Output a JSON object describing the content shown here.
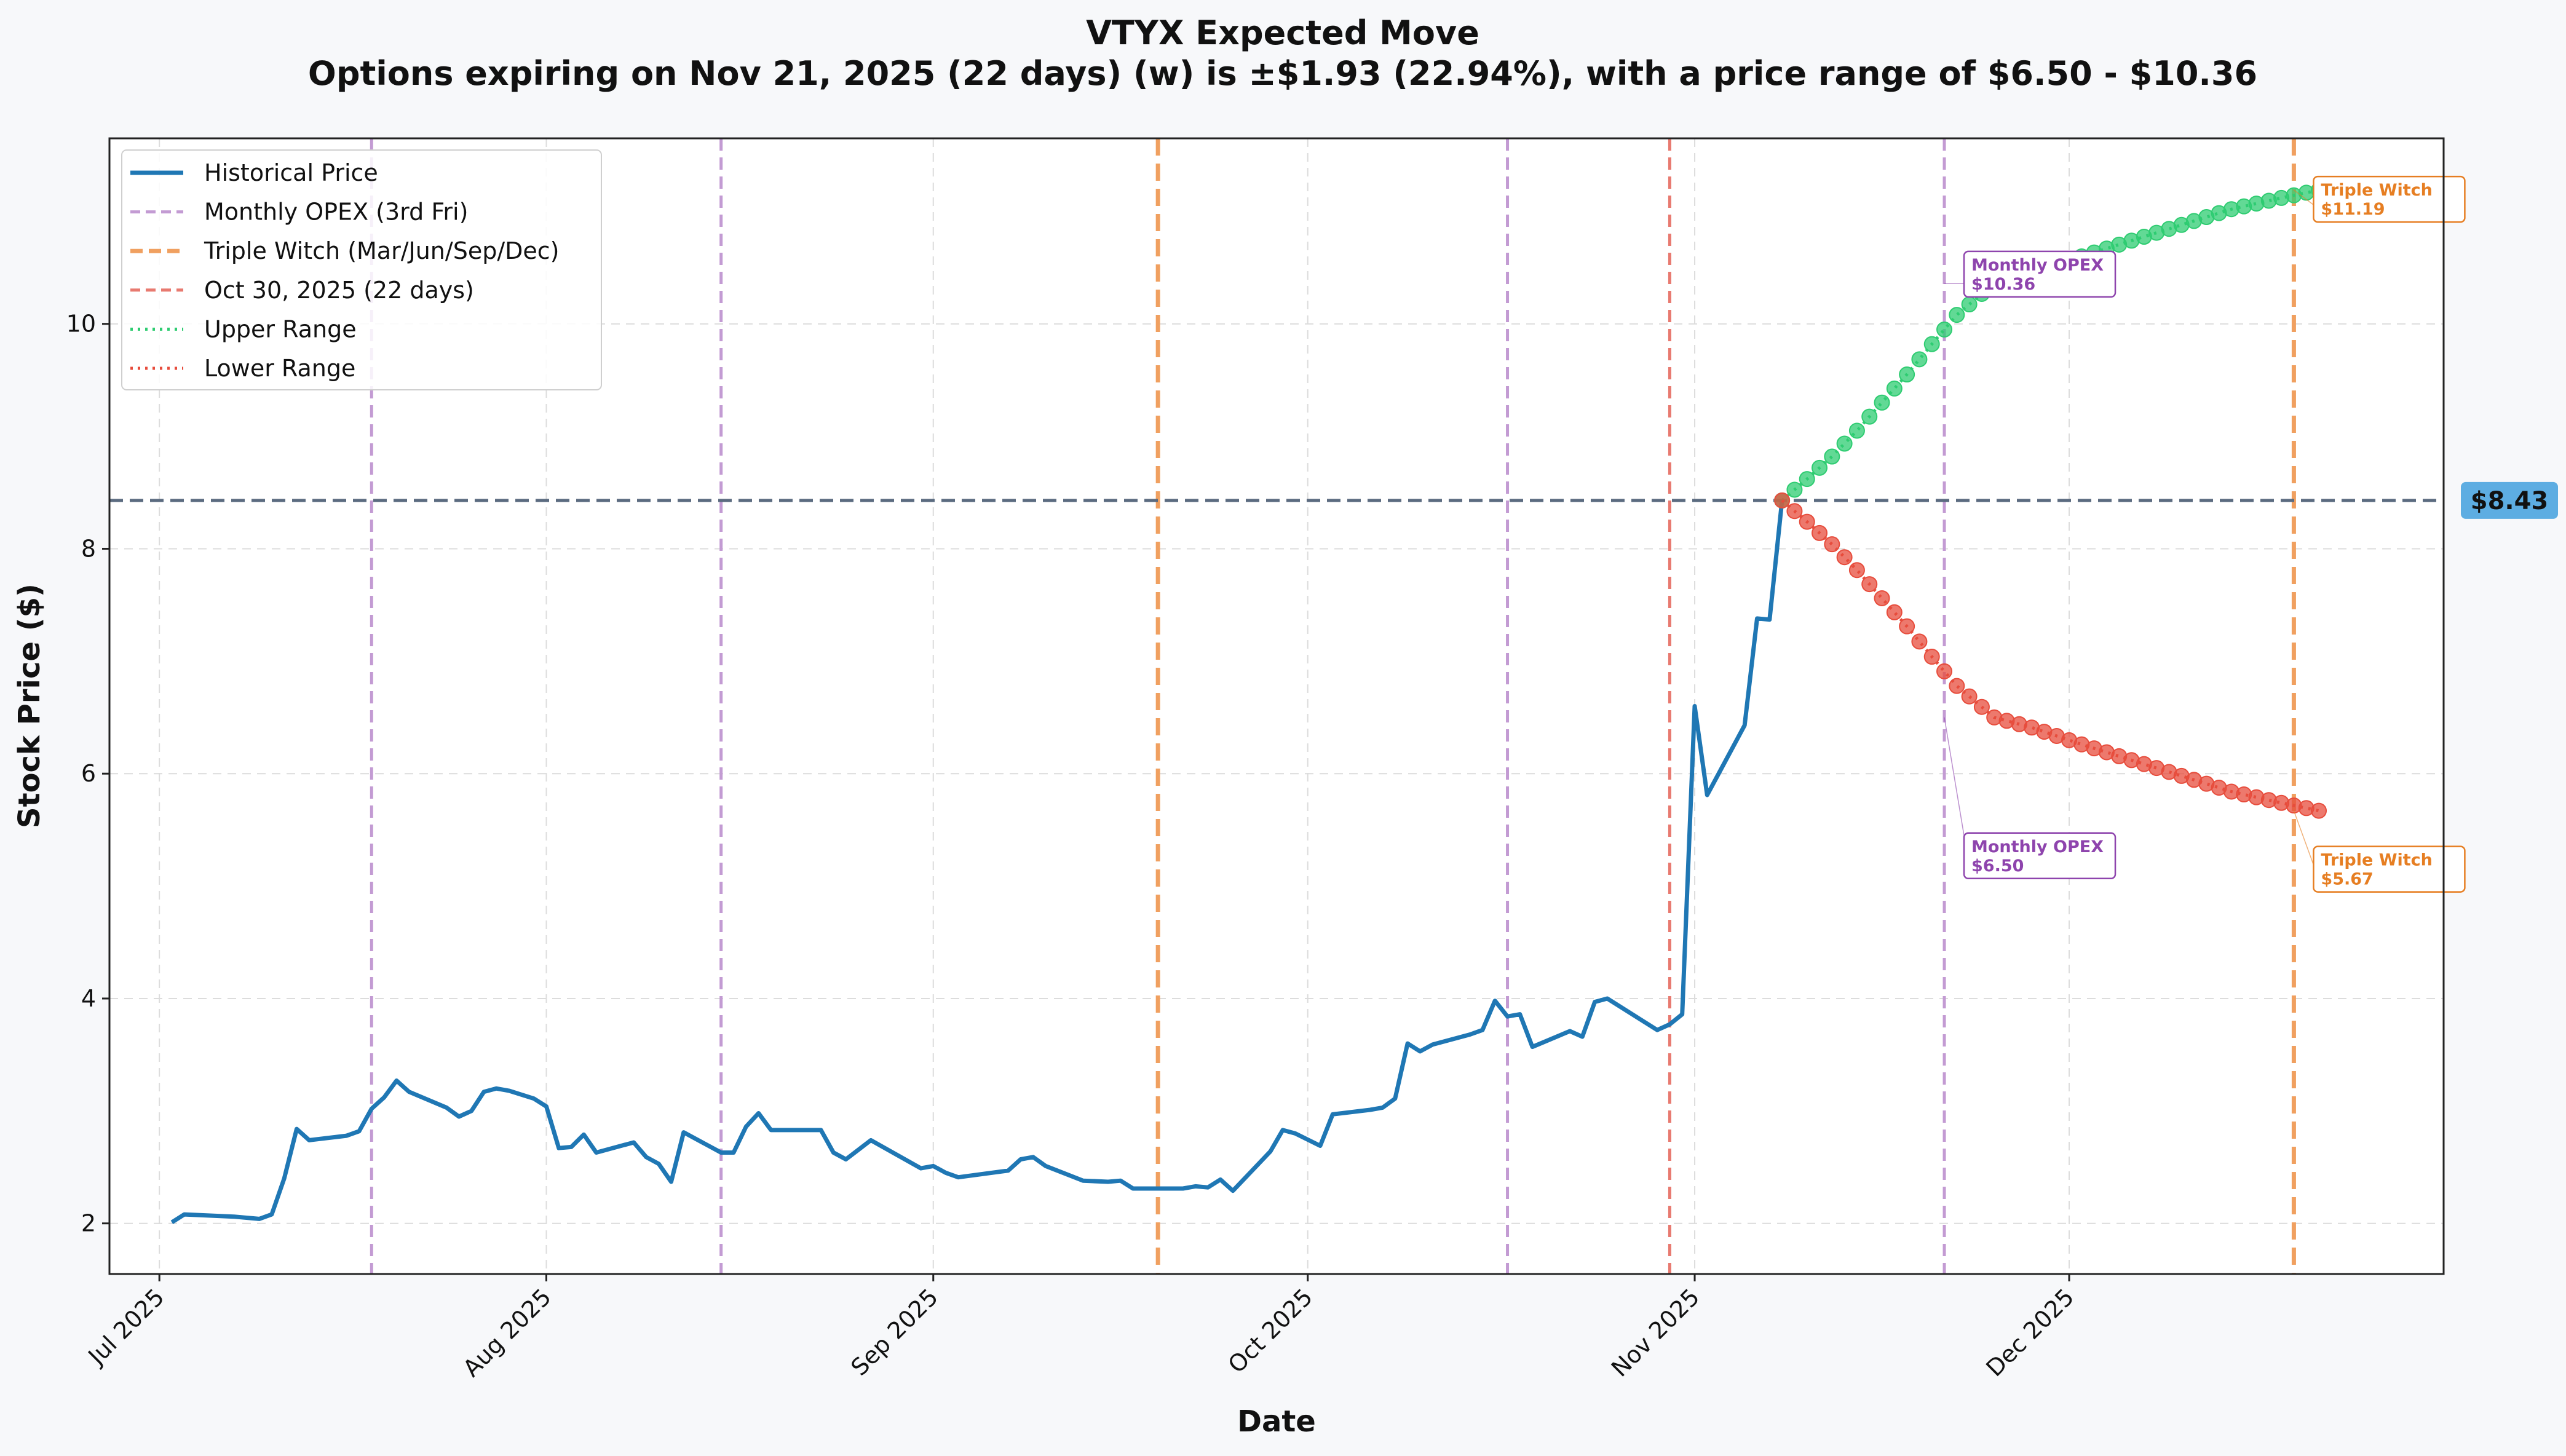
{
  "chart_data": {
    "type": "line",
    "title": "VTYX Expected Move",
    "subtitle": "Options expiring on Nov 21, 2025 (22 days) (w) is ±$1.93 (22.94%), with a price range of $6.50 - $10.36",
    "xlabel": "Date",
    "ylabel": "Stock Price ($)",
    "xlim": [
      "2025-06-27",
      "2025-12-31"
    ],
    "ylim": [
      1.55,
      11.65
    ],
    "grid": true,
    "legend_placement": "upper-left",
    "x_ticks": [
      {
        "date": "2025-07-01",
        "label": "Jul 2025"
      },
      {
        "date": "2025-08-01",
        "label": "Aug 2025"
      },
      {
        "date": "2025-09-01",
        "label": "Sep 2025"
      },
      {
        "date": "2025-10-01",
        "label": "Oct 2025"
      },
      {
        "date": "2025-11-01",
        "label": "Nov 2025"
      },
      {
        "date": "2025-12-01",
        "label": "Dec 2025"
      }
    ],
    "y_ticks": [
      {
        "value": 2,
        "label": "2"
      },
      {
        "value": 4,
        "label": "4"
      },
      {
        "value": 6,
        "label": "6"
      },
      {
        "value": 8,
        "label": "8"
      },
      {
        "value": 10,
        "label": "10"
      }
    ],
    "series": [
      {
        "name": "Historical Price",
        "color": "#1f77b4",
        "points": [
          [
            "2025-07-02",
            2.01
          ],
          [
            "2025-07-03",
            2.08
          ],
          [
            "2025-07-07",
            2.06
          ],
          [
            "2025-07-09",
            2.04
          ],
          [
            "2025-07-10",
            2.08
          ],
          [
            "2025-07-11",
            2.4
          ],
          [
            "2025-07-12",
            2.84
          ],
          [
            "2025-07-13",
            2.74
          ],
          [
            "2025-07-16",
            2.78
          ],
          [
            "2025-07-17",
            2.82
          ],
          [
            "2025-07-18",
            3.02
          ],
          [
            "2025-07-19",
            3.12
          ],
          [
            "2025-07-20",
            3.27
          ],
          [
            "2025-07-21",
            3.17
          ],
          [
            "2025-07-24",
            3.03
          ],
          [
            "2025-07-25",
            2.95
          ],
          [
            "2025-07-26",
            3.0
          ],
          [
            "2025-07-27",
            3.17
          ],
          [
            "2025-07-28",
            3.2
          ],
          [
            "2025-07-29",
            3.18
          ],
          [
            "2025-07-31",
            3.11
          ],
          [
            "2025-08-01",
            3.04
          ],
          [
            "2025-08-02",
            2.67
          ],
          [
            "2025-08-03",
            2.68
          ],
          [
            "2025-08-04",
            2.79
          ],
          [
            "2025-08-05",
            2.63
          ],
          [
            "2025-08-08",
            2.72
          ],
          [
            "2025-08-09",
            2.59
          ],
          [
            "2025-08-10",
            2.53
          ],
          [
            "2025-08-11",
            2.37
          ],
          [
            "2025-08-12",
            2.81
          ],
          [
            "2025-08-15",
            2.63
          ],
          [
            "2025-08-16",
            2.63
          ],
          [
            "2025-08-17",
            2.86
          ],
          [
            "2025-08-18",
            2.98
          ],
          [
            "2025-08-19",
            2.83
          ],
          [
            "2025-08-23",
            2.83
          ],
          [
            "2025-08-24",
            2.63
          ],
          [
            "2025-08-25",
            2.57
          ],
          [
            "2025-08-27",
            2.74
          ],
          [
            "2025-08-31",
            2.49
          ],
          [
            "2025-09-01",
            2.51
          ],
          [
            "2025-09-02",
            2.45
          ],
          [
            "2025-09-03",
            2.41
          ],
          [
            "2025-09-07",
            2.47
          ],
          [
            "2025-09-08",
            2.57
          ],
          [
            "2025-09-09",
            2.59
          ],
          [
            "2025-09-10",
            2.51
          ],
          [
            "2025-09-13",
            2.38
          ],
          [
            "2025-09-15",
            2.37
          ],
          [
            "2025-09-16",
            2.38
          ],
          [
            "2025-09-17",
            2.31
          ],
          [
            "2025-09-20",
            2.31
          ],
          [
            "2025-09-21",
            2.31
          ],
          [
            "2025-09-22",
            2.33
          ],
          [
            "2025-09-23",
            2.32
          ],
          [
            "2025-09-24",
            2.39
          ],
          [
            "2025-09-25",
            2.29
          ],
          [
            "2025-09-28",
            2.64
          ],
          [
            "2025-09-29",
            2.83
          ],
          [
            "2025-09-30",
            2.8
          ],
          [
            "2025-10-02",
            2.69
          ],
          [
            "2025-10-03",
            2.97
          ],
          [
            "2025-10-06",
            3.01
          ],
          [
            "2025-10-07",
            3.03
          ],
          [
            "2025-10-08",
            3.11
          ],
          [
            "2025-10-09",
            3.6
          ],
          [
            "2025-10-10",
            3.53
          ],
          [
            "2025-10-11",
            3.59
          ],
          [
            "2025-10-14",
            3.68
          ],
          [
            "2025-10-15",
            3.72
          ],
          [
            "2025-10-16",
            3.98
          ],
          [
            "2025-10-17",
            3.84
          ],
          [
            "2025-10-18",
            3.86
          ],
          [
            "2025-10-19",
            3.57
          ],
          [
            "2025-10-22",
            3.71
          ],
          [
            "2025-10-23",
            3.66
          ],
          [
            "2025-10-24",
            3.97
          ],
          [
            "2025-10-25",
            4.0
          ],
          [
            "2025-10-29",
            3.72
          ],
          [
            "2025-10-30",
            3.77
          ],
          [
            "2025-10-31",
            3.86
          ],
          [
            "2025-11-01",
            6.6
          ],
          [
            "2025-11-02",
            5.81
          ],
          [
            "2025-11-05",
            6.43
          ],
          [
            "2025-11-06",
            7.38
          ],
          [
            "2025-11-07",
            7.37
          ],
          [
            "2025-11-08",
            8.43
          ]
        ]
      },
      {
        "name": "Upper Range",
        "color": "#2ecc71",
        "points": [
          [
            "2025-11-08",
            8.43
          ],
          [
            "2025-11-10",
            8.62
          ],
          [
            "2025-11-12",
            8.82
          ],
          [
            "2025-11-14",
            9.05
          ],
          [
            "2025-11-16",
            9.3
          ],
          [
            "2025-11-18",
            9.55
          ],
          [
            "2025-11-20",
            9.82
          ],
          [
            "2025-11-22",
            10.08
          ],
          [
            "2025-11-25",
            10.36
          ],
          [
            "2025-11-28",
            10.45
          ],
          [
            "2025-12-02",
            10.6
          ],
          [
            "2025-12-06",
            10.74
          ],
          [
            "2025-12-10",
            10.88
          ],
          [
            "2025-12-14",
            11.02
          ],
          [
            "2025-12-18",
            11.12
          ],
          [
            "2025-12-21",
            11.19
          ]
        ]
      },
      {
        "name": "Lower Range",
        "color": "#e74c3c",
        "points": [
          [
            "2025-11-08",
            8.43
          ],
          [
            "2025-11-10",
            8.24
          ],
          [
            "2025-11-12",
            8.04
          ],
          [
            "2025-11-14",
            7.81
          ],
          [
            "2025-11-16",
            7.56
          ],
          [
            "2025-11-18",
            7.31
          ],
          [
            "2025-11-20",
            7.04
          ],
          [
            "2025-11-22",
            6.78
          ],
          [
            "2025-11-25",
            6.5
          ],
          [
            "2025-11-28",
            6.41
          ],
          [
            "2025-12-02",
            6.26
          ],
          [
            "2025-12-06",
            6.12
          ],
          [
            "2025-12-10",
            5.98
          ],
          [
            "2025-12-14",
            5.84
          ],
          [
            "2025-12-18",
            5.74
          ],
          [
            "2025-12-21",
            5.67
          ]
        ]
      }
    ],
    "reference_lines": {
      "monthly_opex": {
        "name": "Monthly OPEX (3rd Fri)",
        "color": "#c39bd3",
        "dates": [
          "2025-07-18",
          "2025-08-15",
          "2025-10-17",
          "2025-11-21"
        ]
      },
      "triple_witch": {
        "name": "Triple Witch (Mar/Jun/Sep/Dec)",
        "color": "#f0a060",
        "dates": [
          "2025-09-19",
          "2025-12-19"
        ]
      },
      "current_date": {
        "name": "Oct 30, 2025 (22 days)",
        "color": "#e87a70",
        "date": "2025-10-30"
      },
      "current_price": {
        "value": 8.43,
        "label": "$8.43",
        "color": "#5b6b80",
        "badge_color": "#5dade2"
      }
    },
    "annotations": [
      {
        "title": "Monthly OPEX",
        "value": "$10.36",
        "anchor_date": "2025-11-21",
        "anchor_value": 10.36,
        "color": "#8e44ad"
      },
      {
        "title": "Monthly OPEX",
        "value": "$6.50",
        "anchor_date": "2025-11-21",
        "anchor_value": 6.5,
        "color": "#8e44ad"
      },
      {
        "title": "Triple Witch",
        "value": "$11.19",
        "anchor_date": "2025-12-19",
        "anchor_value": 11.19,
        "color": "#e67e22"
      },
      {
        "title": "Triple Witch",
        "value": "$5.67",
        "anchor_date": "2025-12-19",
        "anchor_value": 5.67,
        "color": "#e67e22"
      }
    ]
  }
}
